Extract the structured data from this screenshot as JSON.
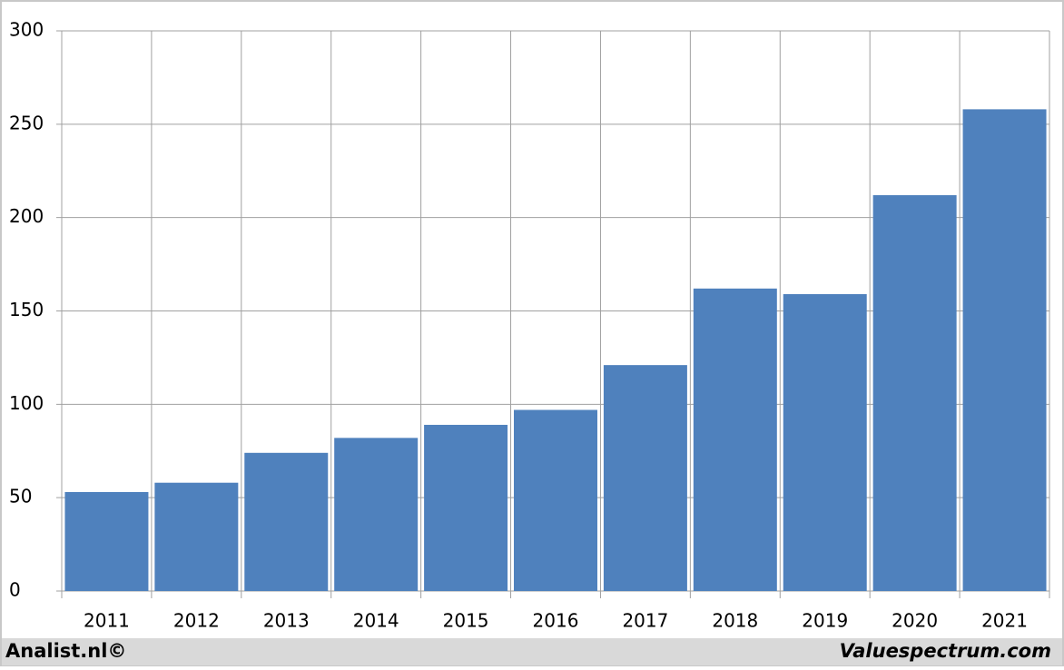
{
  "chart_data": {
    "type": "bar",
    "categories": [
      "2011",
      "2012",
      "2013",
      "2014",
      "2015",
      "2016",
      "2017",
      "2018",
      "2019",
      "2020",
      "2021"
    ],
    "values": [
      53,
      58,
      74,
      82,
      89,
      97,
      121,
      162,
      159,
      212,
      258
    ],
    "color": "#4f81bd",
    "ylim": [
      0,
      300
    ],
    "yticks": [
      0,
      50,
      100,
      150,
      200,
      250,
      300
    ],
    "grid": true,
    "footer_left": "Analist.nl©",
    "footer_right": "Valuespectrum.com"
  }
}
